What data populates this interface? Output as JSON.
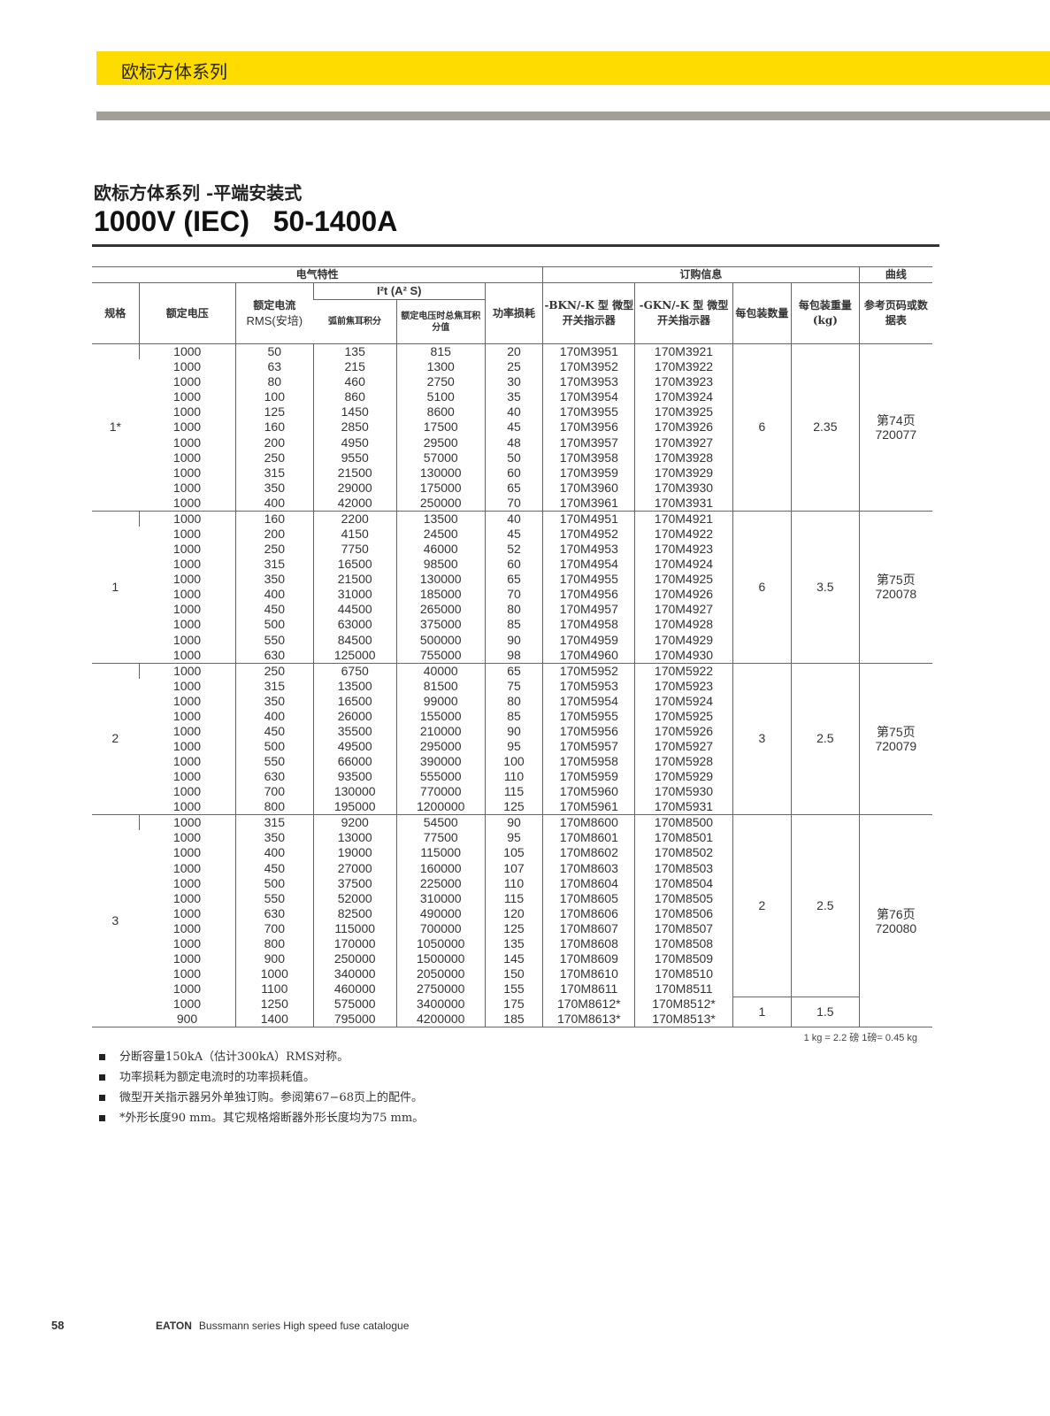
{
  "band_title": "欧标方体系列",
  "subtitle": "欧标方体系列 -平端安装式",
  "title": "1000V (IEC)   50-1400A",
  "header": {
    "electrical": "电气特性",
    "ordering": "订购信息",
    "curve": "曲线",
    "size": "规格",
    "voltage": "额定电压",
    "current": "额定电流",
    "current_unit": "RMS(安培)",
    "i2t": "I²t (A² S)",
    "prearc": "弧前焦耳积分",
    "total": "额定电压时总焦耳积分值",
    "loss": "功率损耗",
    "bkn": "-BKN/-K 型 微型开关指示器",
    "gkn": "-GKN/-K 型 微型开关指示器",
    "qty": "每包装数量",
    "weight": "每包装重量(kg)",
    "ref": "参考页码或数据表"
  },
  "groups": [
    {
      "size": "1*",
      "qty": "6",
      "weight": "2.35",
      "ref": "第74页 720077",
      "rows": [
        [
          "1000",
          "50",
          "135",
          "815",
          "20",
          "170M3951",
          "170M3921"
        ],
        [
          "1000",
          "63",
          "215",
          "1300",
          "25",
          "170M3952",
          "170M3922"
        ],
        [
          "1000",
          "80",
          "460",
          "2750",
          "30",
          "170M3953",
          "170M3923"
        ],
        [
          "1000",
          "100",
          "860",
          "5100",
          "35",
          "170M3954",
          "170M3924"
        ],
        [
          "1000",
          "125",
          "1450",
          "8600",
          "40",
          "170M3955",
          "170M3925"
        ],
        [
          "1000",
          "160",
          "2850",
          "17500",
          "45",
          "170M3956",
          "170M3926"
        ],
        [
          "1000",
          "200",
          "4950",
          "29500",
          "48",
          "170M3957",
          "170M3927"
        ],
        [
          "1000",
          "250",
          "9550",
          "57000",
          "50",
          "170M3958",
          "170M3928"
        ],
        [
          "1000",
          "315",
          "21500",
          "130000",
          "60",
          "170M3959",
          "170M3929"
        ],
        [
          "1000",
          "350",
          "29000",
          "175000",
          "65",
          "170M3960",
          "170M3930"
        ],
        [
          "1000",
          "400",
          "42000",
          "250000",
          "70",
          "170M3961",
          "170M3931"
        ]
      ]
    },
    {
      "size": "1",
      "qty": "6",
      "weight": "3.5",
      "ref": "第75页 720078",
      "rows": [
        [
          "1000",
          "160",
          "2200",
          "13500",
          "40",
          "170M4951",
          "170M4921"
        ],
        [
          "1000",
          "200",
          "4150",
          "24500",
          "45",
          "170M4952",
          "170M4922"
        ],
        [
          "1000",
          "250",
          "7750",
          "46000",
          "52",
          "170M4953",
          "170M4923"
        ],
        [
          "1000",
          "315",
          "16500",
          "98500",
          "60",
          "170M4954",
          "170M4924"
        ],
        [
          "1000",
          "350",
          "21500",
          "130000",
          "65",
          "170M4955",
          "170M4925"
        ],
        [
          "1000",
          "400",
          "31000",
          "185000",
          "70",
          "170M4956",
          "170M4926"
        ],
        [
          "1000",
          "450",
          "44500",
          "265000",
          "80",
          "170M4957",
          "170M4927"
        ],
        [
          "1000",
          "500",
          "63000",
          "375000",
          "85",
          "170M4958",
          "170M4928"
        ],
        [
          "1000",
          "550",
          "84500",
          "500000",
          "90",
          "170M4959",
          "170M4929"
        ],
        [
          "1000",
          "630",
          "125000",
          "755000",
          "98",
          "170M4960",
          "170M4930"
        ]
      ]
    },
    {
      "size": "2",
      "qty": "3",
      "weight": "2.5",
      "ref": "第75页 720079",
      "rows": [
        [
          "1000",
          "250",
          "6750",
          "40000",
          "65",
          "170M5952",
          "170M5922"
        ],
        [
          "1000",
          "315",
          "13500",
          "81500",
          "75",
          "170M5953",
          "170M5923"
        ],
        [
          "1000",
          "350",
          "16500",
          "99000",
          "80",
          "170M5954",
          "170M5924"
        ],
        [
          "1000",
          "400",
          "26000",
          "155000",
          "85",
          "170M5955",
          "170M5925"
        ],
        [
          "1000",
          "450",
          "35500",
          "210000",
          "90",
          "170M5956",
          "170M5926"
        ],
        [
          "1000",
          "500",
          "49500",
          "295000",
          "95",
          "170M5957",
          "170M5927"
        ],
        [
          "1000",
          "550",
          "66000",
          "390000",
          "100",
          "170M5958",
          "170M5928"
        ],
        [
          "1000",
          "630",
          "93500",
          "555000",
          "110",
          "170M5959",
          "170M5929"
        ],
        [
          "1000",
          "700",
          "130000",
          "770000",
          "115",
          "170M5960",
          "170M5930"
        ],
        [
          "1000",
          "800",
          "195000",
          "1200000",
          "125",
          "170M5961",
          "170M5931"
        ]
      ]
    },
    {
      "size": "3",
      "qty": "2",
      "weight": "2.5",
      "qty2": "1",
      "weight2": "1.5",
      "split": 12,
      "ref": "第76页 720080",
      "rows": [
        [
          "1000",
          "315",
          "9200",
          "54500",
          "90",
          "170M8600",
          "170M8500"
        ],
        [
          "1000",
          "350",
          "13000",
          "77500",
          "95",
          "170M8601",
          "170M8501"
        ],
        [
          "1000",
          "400",
          "19000",
          "115000",
          "105",
          "170M8602",
          "170M8502"
        ],
        [
          "1000",
          "450",
          "27000",
          "160000",
          "107",
          "170M8603",
          "170M8503"
        ],
        [
          "1000",
          "500",
          "37500",
          "225000",
          "110",
          "170M8604",
          "170M8504"
        ],
        [
          "1000",
          "550",
          "52000",
          "310000",
          "115",
          "170M8605",
          "170M8505"
        ],
        [
          "1000",
          "630",
          "82500",
          "490000",
          "120",
          "170M8606",
          "170M8506"
        ],
        [
          "1000",
          "700",
          "115000",
          "700000",
          "125",
          "170M8607",
          "170M8507"
        ],
        [
          "1000",
          "800",
          "170000",
          "1050000",
          "135",
          "170M8608",
          "170M8508"
        ],
        [
          "1000",
          "900",
          "250000",
          "1500000",
          "145",
          "170M8609",
          "170M8509"
        ],
        [
          "1000",
          "1000",
          "340000",
          "2050000",
          "150",
          "170M8610",
          "170M8510"
        ],
        [
          "1000",
          "1100",
          "460000",
          "2750000",
          "155",
          "170M8611",
          "170M8511"
        ],
        [
          "1000",
          "1250",
          "575000",
          "3400000",
          "175",
          "170M8612*",
          "170M8512*"
        ],
        [
          "900",
          "1400",
          "795000",
          "4200000",
          "185",
          "170M8613*",
          "170M8513*"
        ]
      ]
    }
  ],
  "units_note": "1 kg = 2.2 磅   1磅= 0.45 kg",
  "notes": [
    "分断容量150kA（估计300kA）RMS对称。",
    "功率损耗为额定电流时的功率损耗值。",
    "微型开关指示器另外单独订购。参阅第67−68页上的配件。",
    "*外形长度90 mm。其它规格熔断器外形长度均为75 mm。"
  ],
  "footer": {
    "page": "58",
    "brand": "EATON",
    "text": "Bussmann series High speed fuse catalogue"
  }
}
